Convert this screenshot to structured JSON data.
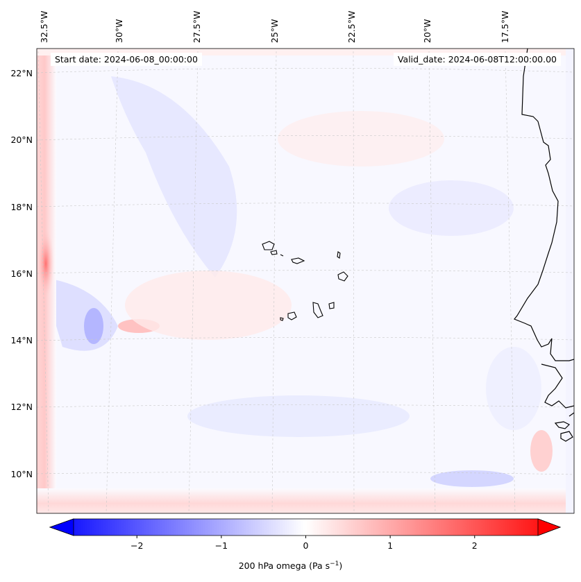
{
  "map": {
    "start_date": "Start date: 2024-06-08_00:00:00",
    "valid_date": "Valid_date: 2024-06-08T12:00:00.00",
    "lon_labels": [
      "32.5°W",
      "30°W",
      "27.5°W",
      "25°W",
      "22.5°W",
      "20°W",
      "17.5°W"
    ],
    "lat_labels": [
      "22°N",
      "20°N",
      "18°N",
      "16°N",
      "14°N",
      "12°N",
      "10°N"
    ],
    "colorbar": {
      "label_prefix": "200 hPa omega (Pa s",
      "label_exp": "−1",
      "label_suffix": ")",
      "ticks": [
        "−2",
        "−1",
        "0",
        "1",
        "2"
      ],
      "range": [
        -2.75,
        2.75
      ],
      "cmap": "bwr"
    },
    "colors": {
      "min": "#0000ff",
      "mid": "#ffffff",
      "max": "#ff0000",
      "coast": "#000000"
    }
  }
}
